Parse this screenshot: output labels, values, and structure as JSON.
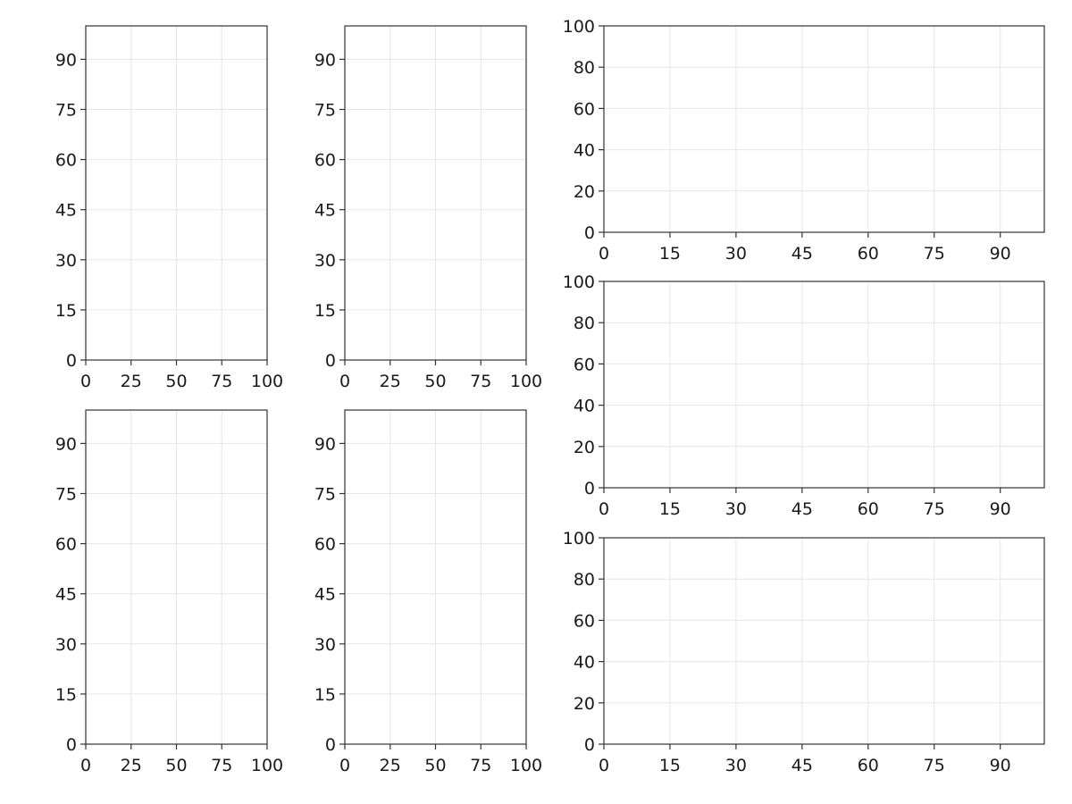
{
  "chart_data": [
    {
      "type": "scatter",
      "series": [],
      "xlim": [
        0,
        100
      ],
      "ylim": [
        0,
        100
      ],
      "xticks": [
        0,
        25,
        50,
        75,
        100
      ],
      "yticks": [
        0,
        15,
        30,
        45,
        60,
        75,
        90
      ],
      "xtick_labels": [
        "0",
        "25",
        "50",
        "75",
        "100"
      ],
      "ytick_labels": [
        "0",
        "15",
        "30",
        "45",
        "60",
        "75",
        "90"
      ],
      "grid": true
    },
    {
      "type": "scatter",
      "series": [],
      "xlim": [
        0,
        100
      ],
      "ylim": [
        0,
        100
      ],
      "xticks": [
        0,
        25,
        50,
        75,
        100
      ],
      "yticks": [
        0,
        15,
        30,
        45,
        60,
        75,
        90
      ],
      "xtick_labels": [
        "0",
        "25",
        "50",
        "75",
        "100"
      ],
      "ytick_labels": [
        "0",
        "15",
        "30",
        "45",
        "60",
        "75",
        "90"
      ],
      "grid": true
    },
    {
      "type": "scatter",
      "series": [],
      "xlim": [
        0,
        100
      ],
      "ylim": [
        0,
        100
      ],
      "xticks": [
        0,
        25,
        50,
        75,
        100
      ],
      "yticks": [
        0,
        15,
        30,
        45,
        60,
        75,
        90
      ],
      "xtick_labels": [
        "0",
        "25",
        "50",
        "75",
        "100"
      ],
      "ytick_labels": [
        "0",
        "15",
        "30",
        "45",
        "60",
        "75",
        "90"
      ],
      "grid": true
    },
    {
      "type": "scatter",
      "series": [],
      "xlim": [
        0,
        100
      ],
      "ylim": [
        0,
        100
      ],
      "xticks": [
        0,
        25,
        50,
        75,
        100
      ],
      "yticks": [
        0,
        15,
        30,
        45,
        60,
        75,
        90
      ],
      "xtick_labels": [
        "0",
        "25",
        "50",
        "75",
        "100"
      ],
      "ytick_labels": [
        "0",
        "15",
        "30",
        "45",
        "60",
        "75",
        "90"
      ],
      "grid": true
    },
    {
      "type": "scatter",
      "series": [],
      "xlim": [
        0,
        100
      ],
      "ylim": [
        0,
        100
      ],
      "xticks": [
        0,
        15,
        30,
        45,
        60,
        75,
        90
      ],
      "yticks": [
        0,
        20,
        40,
        60,
        80,
        100
      ],
      "xtick_labels": [
        "0",
        "15",
        "30",
        "45",
        "60",
        "75",
        "90"
      ],
      "ytick_labels": [
        "0",
        "20",
        "40",
        "60",
        "80",
        "100"
      ],
      "grid": true
    },
    {
      "type": "scatter",
      "series": [],
      "xlim": [
        0,
        100
      ],
      "ylim": [
        0,
        100
      ],
      "xticks": [
        0,
        15,
        30,
        45,
        60,
        75,
        90
      ],
      "yticks": [
        0,
        20,
        40,
        60,
        80,
        100
      ],
      "xtick_labels": [
        "0",
        "15",
        "30",
        "45",
        "60",
        "75",
        "90"
      ],
      "ytick_labels": [
        "0",
        "20",
        "40",
        "60",
        "80",
        "100"
      ],
      "grid": true
    },
    {
      "type": "scatter",
      "series": [],
      "xlim": [
        0,
        100
      ],
      "ylim": [
        0,
        100
      ],
      "xticks": [
        0,
        15,
        30,
        45,
        60,
        75,
        90
      ],
      "yticks": [
        0,
        20,
        40,
        60,
        80,
        100
      ],
      "xtick_labels": [
        "0",
        "15",
        "30",
        "45",
        "60",
        "75",
        "90"
      ],
      "ytick_labels": [
        "0",
        "20",
        "40",
        "60",
        "80",
        "100"
      ],
      "grid": true
    }
  ],
  "colors": {
    "frame": "#333333",
    "grid": "#e6e6e6",
    "text": "#1a1a1a",
    "background": "#ffffff"
  }
}
